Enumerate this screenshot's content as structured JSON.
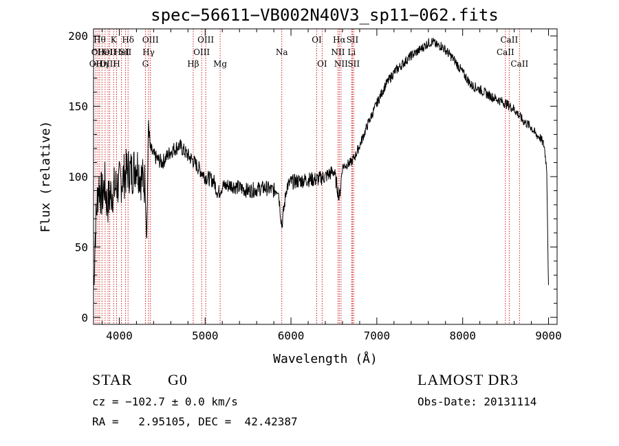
{
  "footer": {
    "object_type": "STAR",
    "object_class": "G0",
    "survey": "LAMOST DR3",
    "cz": "cz = −102.7 ± 0.0 km/s",
    "obs_date": "Obs-Date: 20131114",
    "ra_dec": "RA =   2.95105, DEC =  42.42387"
  },
  "colors": {
    "spectrum": "#000000",
    "line_marker": "#cc0000",
    "axes": "#000000"
  },
  "chart_data": {
    "type": "line",
    "title": "spec−56611−VB002N40V3_sp11−062.fits",
    "xlabel": "Wavelength (Å)",
    "ylabel": "Flux (relative)",
    "xlim": [
      3700,
      9100
    ],
    "ylim": [
      -5,
      205
    ],
    "x_ticks": [
      4000,
      5000,
      6000,
      7000,
      8000,
      9000
    ],
    "y_ticks": [
      0,
      50,
      100,
      150,
      200
    ],
    "series": [
      {
        "name": "flux",
        "x": [
          3700,
          3720,
          3740,
          3760,
          3780,
          3800,
          3830,
          3860,
          3900,
          3950,
          4000,
          4050,
          4100,
          4150,
          4200,
          4250,
          4300,
          4320,
          4340,
          4360,
          4400,
          4450,
          4500,
          4600,
          4700,
          4800,
          4850,
          4900,
          5000,
          5100,
          5150,
          5200,
          5300,
          5400,
          5500,
          5600,
          5700,
          5800,
          5850,
          5893,
          5950,
          6000,
          6100,
          6200,
          6300,
          6400,
          6500,
          6563,
          6600,
          6700,
          6750,
          6800,
          6850,
          6900,
          7000,
          7100,
          7200,
          7300,
          7400,
          7500,
          7600,
          7650,
          7700,
          7750,
          7800,
          7900,
          8000,
          8100,
          8200,
          8300,
          8400,
          8500,
          8600,
          8700,
          8800,
          8850,
          8900,
          8950,
          8980,
          9000
        ],
        "y": [
          20,
          60,
          80,
          95,
          90,
          85,
          95,
          80,
          88,
          92,
          95,
          100,
          105,
          103,
          110,
          100,
          95,
          55,
          140,
          120,
          115,
          112,
          110,
          118,
          122,
          115,
          112,
          108,
          100,
          97,
          88,
          93,
          94,
          92,
          90,
          91,
          92,
          90,
          92,
          65,
          93,
          96,
          97,
          98,
          98,
          100,
          104,
          85,
          107,
          110,
          115,
          122,
          130,
          138,
          152,
          165,
          174,
          180,
          186,
          190,
          195,
          196,
          193,
          193,
          190,
          183,
          174,
          165,
          162,
          158,
          155,
          152,
          148,
          140,
          135,
          130,
          128,
          122,
          105,
          20
        ]
      }
    ],
    "line_markers": [
      {
        "x": 3727,
        "label": "OII",
        "row": 3
      },
      {
        "x": 3750,
        "label": "OII",
        "row": 2
      },
      {
        "x": 3771,
        "label": "Hθ",
        "row": 1
      },
      {
        "x": 3798,
        "label": "Hη",
        "row": 3
      },
      {
        "x": 3835,
        "label": "HeI",
        "row": 2
      },
      {
        "x": 3869,
        "label": "OIII",
        "row": 3
      },
      {
        "x": 3889,
        "label": "OII",
        "row": 2
      },
      {
        "x": 3934,
        "label": "K",
        "row": 1
      },
      {
        "x": 3969,
        "label": "H",
        "row": 3
      },
      {
        "x": 4026,
        "label": "HeI",
        "row": 2
      },
      {
        "x": 4072,
        "label": "SII",
        "row": 2
      },
      {
        "x": 4102,
        "label": "Hδ",
        "row": 1
      },
      {
        "x": 4304,
        "label": "G",
        "row": 3
      },
      {
        "x": 4341,
        "label": "Hγ",
        "row": 2
      },
      {
        "x": 4363,
        "label": "OIII",
        "row": 1
      },
      {
        "x": 4861,
        "label": "Hβ",
        "row": 3
      },
      {
        "x": 4959,
        "label": "OIII",
        "row": 2
      },
      {
        "x": 5007,
        "label": "OIII",
        "row": 1
      },
      {
        "x": 5175,
        "label": "Mg",
        "row": 3
      },
      {
        "x": 5893,
        "label": "Na",
        "row": 2
      },
      {
        "x": 6300,
        "label": "OI",
        "row": 1
      },
      {
        "x": 6363,
        "label": "OI",
        "row": 3
      },
      {
        "x": 6548,
        "label": "NII",
        "row": 2
      },
      {
        "x": 6563,
        "label": "Hα",
        "row": 1
      },
      {
        "x": 6583,
        "label": "NII",
        "row": 3
      },
      {
        "x": 6707,
        "label": "Li",
        "row": 2
      },
      {
        "x": 6716,
        "label": "SII",
        "row": 1
      },
      {
        "x": 6731,
        "label": "SII",
        "row": 3
      },
      {
        "x": 8498,
        "label": "CaII",
        "row": 2
      },
      {
        "x": 8542,
        "label": "CaII",
        "row": 1
      },
      {
        "x": 8662,
        "label": "CaII",
        "row": 3
      }
    ]
  }
}
